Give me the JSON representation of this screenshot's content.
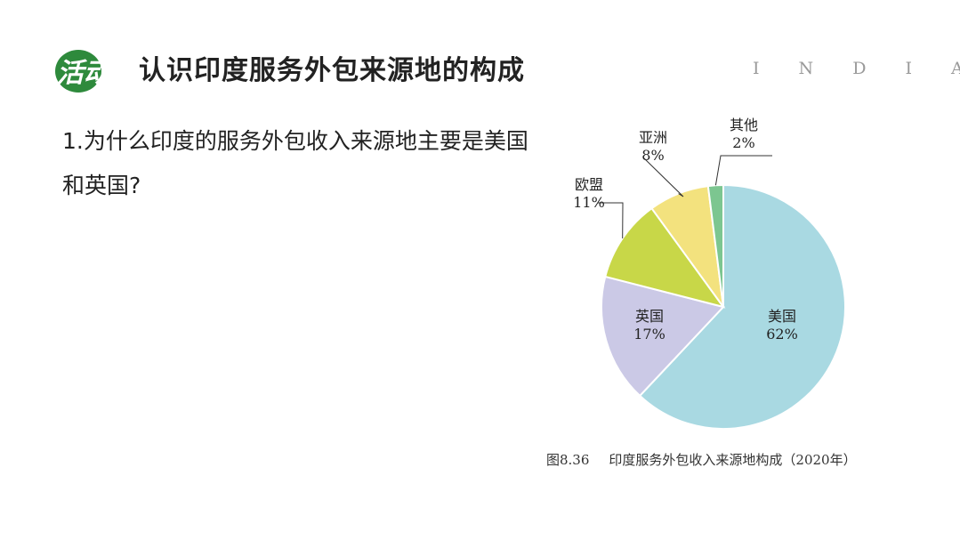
{
  "header": {
    "logo_text": "活动",
    "title": "认识印度服务外包来源地的构成",
    "tag": "I N D I A"
  },
  "question": {
    "line1": "1.为什么印度的服务外包收入来源地主要是美国",
    "line2": "和英国?"
  },
  "caption": {
    "figure_number": "图8.36",
    "text": "印度服务外包收入来源地构成（2020年）"
  },
  "colors": {
    "logo_green": "#2e8a3c",
    "usa": "#a9d9e2",
    "uk": "#cbc9e6",
    "eu": "#c8d748",
    "asia": "#f3e27e",
    "other": "#7cc690"
  },
  "chart_data": {
    "type": "pie",
    "title": "印度服务外包收入来源地构成（2020年）",
    "slices": [
      {
        "label": "美国",
        "value": 62,
        "value_label": "62%",
        "color": "#a9d9e2"
      },
      {
        "label": "英国",
        "value": 17,
        "value_label": "17%",
        "color": "#cbc9e6"
      },
      {
        "label": "欧盟",
        "value": 11,
        "value_label": "11%",
        "color": "#c8d748"
      },
      {
        "label": "亚洲",
        "value": 8,
        "value_label": "8%",
        "color": "#f3e27e"
      },
      {
        "label": "其他",
        "value": 2,
        "value_label": "2%",
        "color": "#7cc690"
      }
    ],
    "start": "12 o'clock",
    "direction": "clockwise"
  }
}
